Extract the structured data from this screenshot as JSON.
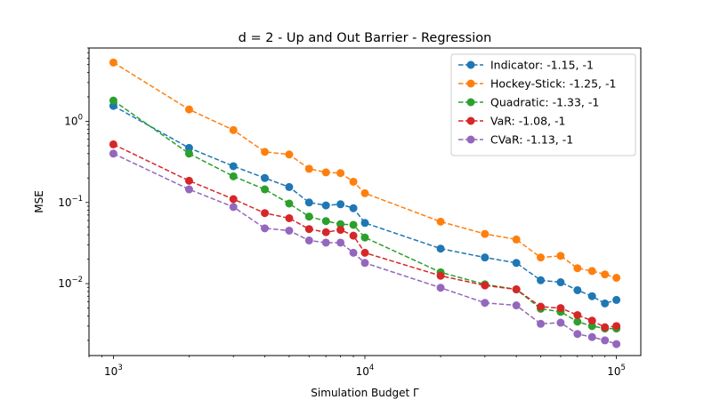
{
  "chart_data": {
    "type": "line",
    "title": "d = 2 - Up and Out Barrier - Regression",
    "xlabel": "Simulation Budget Γ",
    "ylabel": "MSE",
    "xscale": "log",
    "yscale": "log",
    "xlim": [
      800,
      125000
    ],
    "ylim": [
      0.0013,
      8.0
    ],
    "grid": false,
    "legend_position": "top-right",
    "x_ticks": [
      {
        "value": 1000,
        "base": "10",
        "exp": "3"
      },
      {
        "value": 10000,
        "base": "10",
        "exp": "4"
      },
      {
        "value": 100000,
        "base": "10",
        "exp": "5"
      }
    ],
    "y_ticks": [
      {
        "value": 1,
        "base": "10",
        "exp": "0"
      },
      {
        "value": 0.1,
        "base": "10",
        "exp": "−1"
      },
      {
        "value": 0.01,
        "base": "10",
        "exp": "−2"
      }
    ],
    "x": [
      1000,
      2000,
      3000,
      4000,
      5000,
      6000,
      7000,
      8000,
      9000,
      10000,
      20000,
      30000,
      40000,
      50000,
      60000,
      70000,
      80000,
      90000,
      100000
    ],
    "series": [
      {
        "name": "Indicator: -1.15, -1",
        "color": "#1f77b4",
        "values": [
          1.55,
          0.47,
          0.28,
          0.2,
          0.155,
          0.1,
          0.092,
          0.095,
          0.085,
          0.056,
          0.027,
          0.021,
          0.018,
          0.011,
          0.0104,
          0.0083,
          0.007,
          0.0057,
          0.0063
        ]
      },
      {
        "name": "Hockey-Stick: -1.25, -1",
        "color": "#ff7f0e",
        "values": [
          5.3,
          1.4,
          0.78,
          0.42,
          0.39,
          0.26,
          0.235,
          0.23,
          0.18,
          0.13,
          0.058,
          0.041,
          0.035,
          0.021,
          0.022,
          0.0155,
          0.0143,
          0.013,
          0.0118
        ]
      },
      {
        "name": "Quadratic: -1.33, -1",
        "color": "#2ca02c",
        "values": [
          1.8,
          0.4,
          0.21,
          0.145,
          0.097,
          0.067,
          0.059,
          0.054,
          0.053,
          0.037,
          0.0138,
          0.0098,
          0.0085,
          0.0049,
          0.0045,
          0.0034,
          0.003,
          0.0028,
          0.0028
        ]
      },
      {
        "name": "VaR: -1.08, -1",
        "color": "#d62728",
        "values": [
          0.52,
          0.185,
          0.11,
          0.074,
          0.064,
          0.047,
          0.043,
          0.046,
          0.039,
          0.024,
          0.0125,
          0.0095,
          0.0085,
          0.0052,
          0.005,
          0.0041,
          0.0035,
          0.0029,
          0.003
        ]
      },
      {
        "name": "CVaR: -1.13, -1",
        "color": "#9467bd",
        "values": [
          0.4,
          0.145,
          0.088,
          0.048,
          0.045,
          0.034,
          0.032,
          0.032,
          0.024,
          0.018,
          0.0089,
          0.0058,
          0.0054,
          0.0032,
          0.0033,
          0.0024,
          0.0022,
          0.002,
          0.0018
        ]
      }
    ]
  }
}
